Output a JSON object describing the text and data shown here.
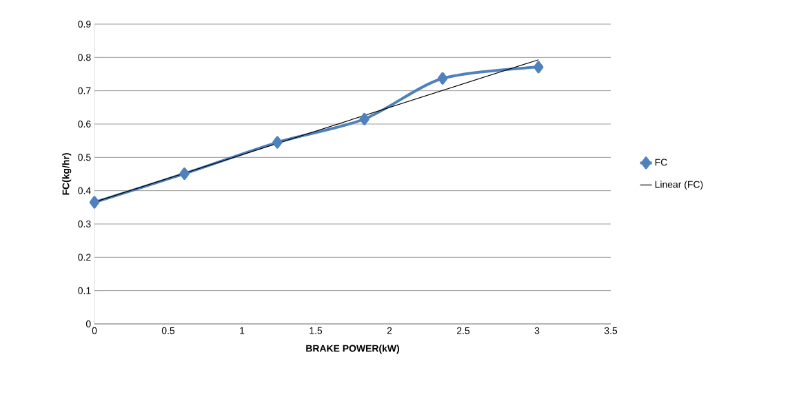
{
  "chart_data": {
    "type": "line",
    "xlabel": "BRAKE POWER(kW)",
    "ylabel": "FC(kg/hr)",
    "x": [
      0,
      0.61,
      1.24,
      1.83,
      2.36,
      3.01
    ],
    "series": [
      {
        "name": "FC",
        "color": "#4f81bd",
        "marker": "diamond",
        "values": [
          0.365,
          0.451,
          0.545,
          0.615,
          0.737,
          0.771
        ]
      },
      {
        "name": "Linear (FC)",
        "color": "#000000",
        "marker": "none",
        "x": [
          0,
          3.01
        ],
        "values": [
          0.366,
          0.793
        ]
      }
    ],
    "xlim": [
      0,
      3.5
    ],
    "ylim": [
      0,
      0.9
    ],
    "xticks": [
      0,
      0.5,
      1,
      1.5,
      2,
      2.5,
      3,
      3.5
    ],
    "yticks": [
      0,
      0.1,
      0.2,
      0.3,
      0.4,
      0.5,
      0.6,
      0.7,
      0.8,
      0.9
    ],
    "grid": "y",
    "legend": "right"
  }
}
